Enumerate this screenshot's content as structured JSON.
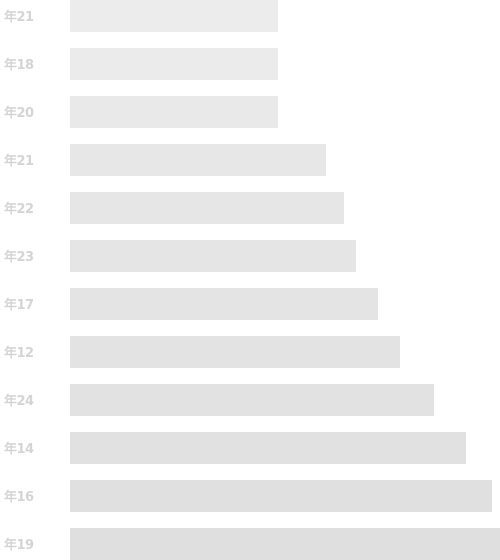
{
  "chart_data": {
    "type": "bar",
    "orientation": "horizontal",
    "categories": [
      "年21",
      "年18",
      "年20",
      "年21",
      "年22",
      "年23",
      "年17",
      "年12",
      "年24",
      "年14",
      "年16",
      "年19"
    ],
    "values": [
      208,
      208,
      208,
      256,
      274,
      286,
      308,
      330,
      364,
      396,
      422,
      430
    ],
    "xlim": [
      0,
      430
    ],
    "grid": false,
    "legend": "none",
    "title": "",
    "xlabel": "",
    "ylabel": "",
    "bar_colors": [
      "#ececec",
      "#ebebeb",
      "#e9e9e9",
      "#e7e7e7",
      "#e6e6e6",
      "#e5e5e5",
      "#e4e4e4",
      "#e3e3e3",
      "#e2e2e2",
      "#e1e1e1",
      "#e0e0e0",
      "#dfdfdf"
    ],
    "label_color": "#d4d4d4"
  }
}
